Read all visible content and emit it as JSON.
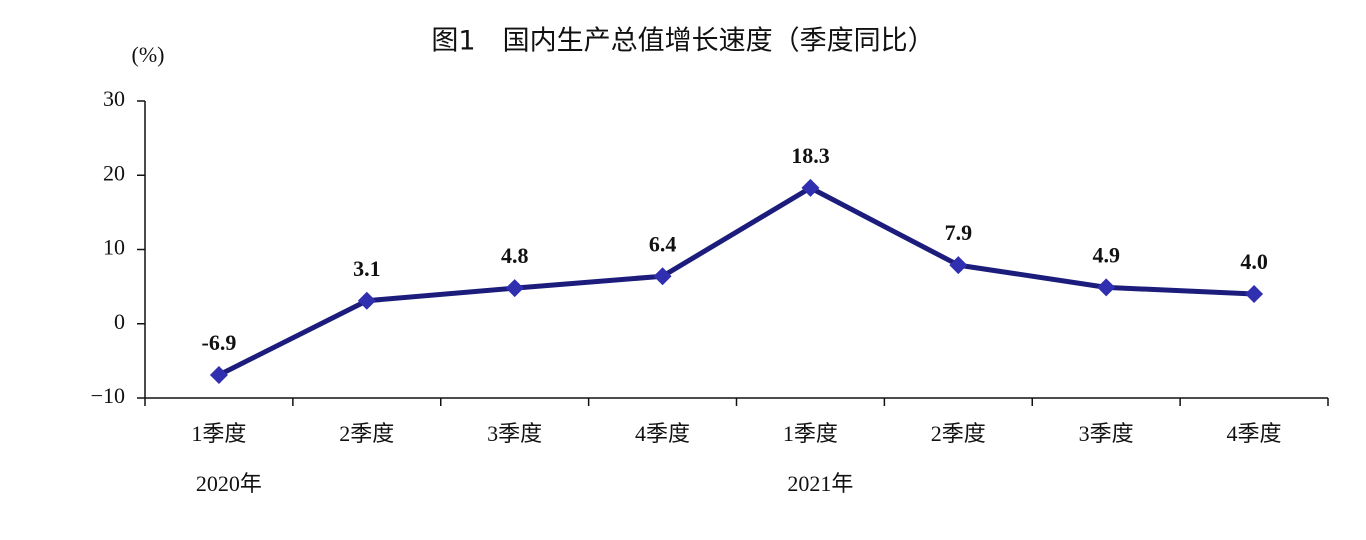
{
  "chart_data": {
    "type": "line",
    "title": "图1　国内生产总值增长速度（季度同比）",
    "y_unit": "(%)",
    "categories": [
      "1季度",
      "2季度",
      "3季度",
      "4季度",
      "1季度",
      "2季度",
      "3季度",
      "4季度"
    ],
    "x_group_labels": [
      "2020年",
      null,
      null,
      null,
      "2021年",
      null,
      null,
      null
    ],
    "values": [
      -6.9,
      3.1,
      4.8,
      6.4,
      18.3,
      7.9,
      4.9,
      4.0
    ],
    "value_labels": [
      "-6.9",
      "3.1",
      "4.8",
      "6.4",
      "18.3",
      "7.9",
      "4.9",
      "4.0"
    ],
    "color": "#1c1c7c",
    "marker_color": "#2f2fb0",
    "ylim": [
      -10,
      30
    ],
    "yticks": [
      {
        "value": -10,
        "label": "−10"
      },
      0,
      10,
      20,
      30
    ],
    "grid": false
  }
}
